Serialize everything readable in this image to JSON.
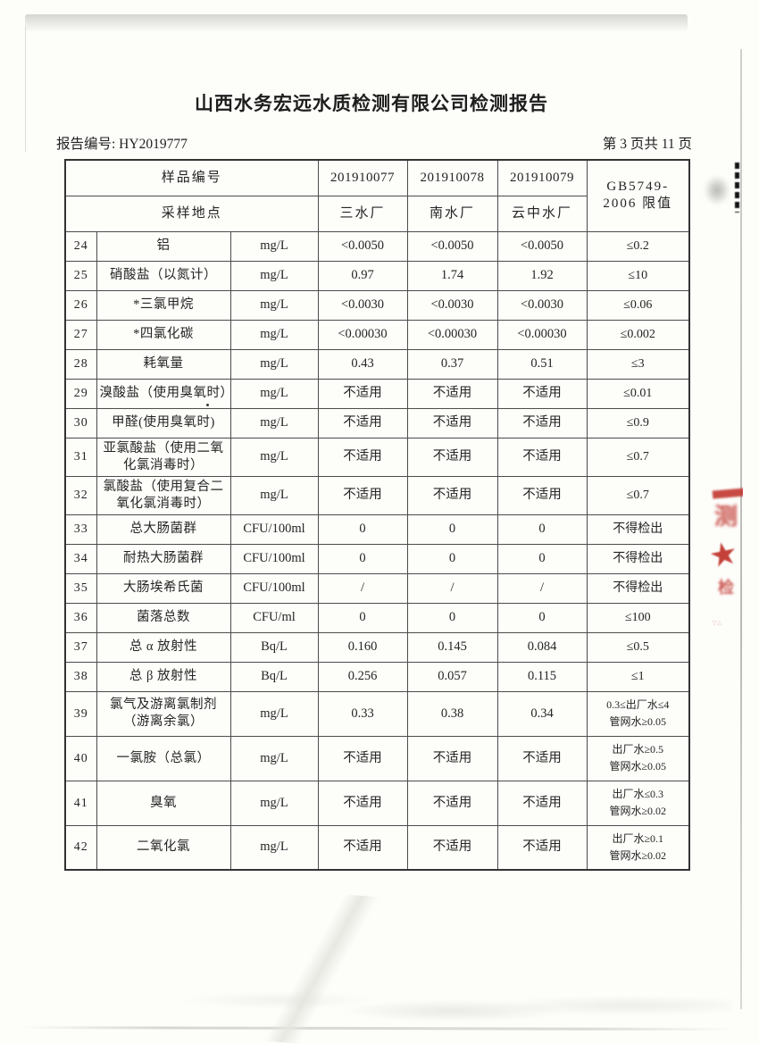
{
  "page": {
    "title": "山西水务宏远水质检测有限公司检测报告",
    "report_no": "报告编号: HY2019777",
    "page_indicator": "第 3 页共 11 页"
  },
  "colors": {
    "stamp_red": "#c23730",
    "text": "#242424",
    "table_border": "#333333"
  },
  "stamp": {
    "blob1_glyph": "测",
    "star_glyph": "★",
    "blob2_glyph": "检",
    "tiny_glyph": "∵∴"
  },
  "table": {
    "header": {
      "sample_no_label": "样品编号",
      "sample_site_label": "采样地点",
      "sample_ids": [
        "201910077",
        "201910078",
        "201910079"
      ],
      "sites": [
        "三水厂",
        "南水厂",
        "云中水厂"
      ],
      "limit_line1": "GB5749-",
      "limit_line2": "2006 限值"
    },
    "rows": [
      {
        "no": "24",
        "name": "铝",
        "unit": "mg/L",
        "values": [
          "<0.0050",
          "<0.0050",
          "<0.0050"
        ],
        "limit": "≤0.2"
      },
      {
        "no": "25",
        "name": "硝酸盐（以氮计）",
        "unit": "mg/L",
        "values": [
          "0.97",
          "1.74",
          "1.92"
        ],
        "limit": "≤10"
      },
      {
        "no": "26",
        "name": "*三氯甲烷",
        "unit": "mg/L",
        "values": [
          "<0.0030",
          "<0.0030",
          "<0.0030"
        ],
        "limit": "≤0.06"
      },
      {
        "no": "27",
        "name": "*四氯化碳",
        "unit": "mg/L",
        "values": [
          "<0.00030",
          "<0.00030",
          "<0.00030"
        ],
        "limit": "≤0.002"
      },
      {
        "no": "28",
        "name": "耗氧量",
        "unit": "mg/L",
        "values": [
          "0.43",
          "0.37",
          "0.51"
        ],
        "limit": "≤3"
      },
      {
        "no": "29",
        "name": "溴酸盐（使用臭氧时）",
        "unit": "mg/L",
        "values": [
          "不适用",
          "不适用",
          "不适用"
        ],
        "limit": "≤0.01"
      },
      {
        "no": "30",
        "name": "甲醛(使用臭氧时)",
        "unit": "mg/L",
        "values": [
          "不适用",
          "不适用",
          "不适用"
        ],
        "limit": "≤0.9"
      },
      {
        "no": "31",
        "name": "亚氯酸盐（使用二氧化氯消毒时）",
        "unit": "mg/L",
        "values": [
          "不适用",
          "不适用",
          "不适用"
        ],
        "limit": "≤0.7"
      },
      {
        "no": "32",
        "name": "氯酸盐（使用复合二氧化氯消毒时）",
        "unit": "mg/L",
        "values": [
          "不适用",
          "不适用",
          "不适用"
        ],
        "limit": "≤0.7"
      },
      {
        "no": "33",
        "name": "总大肠菌群",
        "unit": "CFU/100ml",
        "values": [
          "0",
          "0",
          "0"
        ],
        "limit": "不得检出"
      },
      {
        "no": "34",
        "name": "耐热大肠菌群",
        "unit": "CFU/100ml",
        "values": [
          "0",
          "0",
          "0"
        ],
        "limit": "不得检出"
      },
      {
        "no": "35",
        "name": "大肠埃希氏菌",
        "unit": "CFU/100ml",
        "values": [
          "/",
          "/",
          "/"
        ],
        "limit": "不得检出"
      },
      {
        "no": "36",
        "name": "菌落总数",
        "unit": "CFU/ml",
        "values": [
          "0",
          "0",
          "0"
        ],
        "limit": "≤100"
      },
      {
        "no": "37",
        "name": "总 α 放射性",
        "unit": "Bq/L",
        "values": [
          "0.160",
          "0.145",
          "0.084"
        ],
        "limit": "≤0.5"
      },
      {
        "no": "38",
        "name": "总 β 放射性",
        "unit": "Bq/L",
        "values": [
          "0.256",
          "0.057",
          "0.115"
        ],
        "limit": "≤1"
      },
      {
        "no": "39",
        "name": "氯气及游离氯制剂（游离余氯）",
        "unit": "mg/L",
        "values": [
          "0.33",
          "0.38",
          "0.34"
        ],
        "limit": [
          "0.3≤出厂水≤4",
          "管网水≥0.05"
        ]
      },
      {
        "no": "40",
        "name": "一氯胺（总氯）",
        "unit": "mg/L",
        "values": [
          "不适用",
          "不适用",
          "不适用"
        ],
        "limit": [
          "出厂水≥0.5",
          "管网水≥0.05"
        ]
      },
      {
        "no": "41",
        "name": "臭氧",
        "unit": "mg/L",
        "values": [
          "不适用",
          "不适用",
          "不适用"
        ],
        "limit": [
          "出厂水≤0.3",
          "管网水≥0.02"
        ]
      },
      {
        "no": "42",
        "name": "二氧化氯",
        "unit": "mg/L",
        "values": [
          "不适用",
          "不适用",
          "不适用"
        ],
        "limit": [
          "出厂水≥0.1",
          "管网水≥0.02"
        ]
      }
    ]
  }
}
